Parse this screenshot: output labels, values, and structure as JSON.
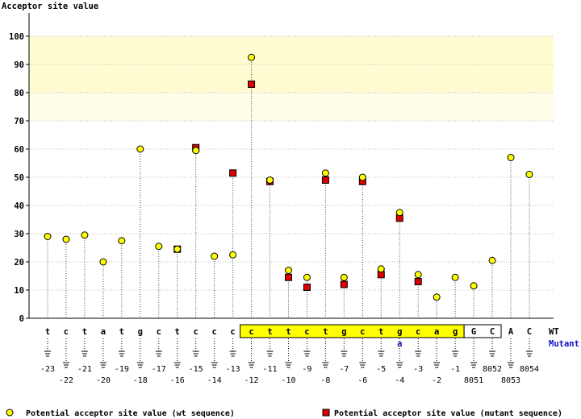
{
  "colors": {
    "wt": "#ffff00",
    "mutant": "#dd0000",
    "band_high": "#fffcd2",
    "band_mid": "#fffee9",
    "highlight": "#ffff00",
    "mutant_label": "#1010cc"
  },
  "chart_data": {
    "type": "scatter",
    "title": "Acceptor site value",
    "ylim": [
      0,
      105
    ],
    "yticks": [
      0,
      10,
      20,
      30,
      40,
      50,
      60,
      70,
      80,
      90,
      100
    ],
    "grid": true,
    "legend_position": "bottom",
    "row_labels": {
      "wt": "WT",
      "mutant": "Mutant"
    },
    "mutant_bases": [
      "",
      "",
      "",
      "",
      "",
      "",
      "",
      "",
      "",
      "",
      "",
      "",
      "",
      "",
      "",
      "",
      "",
      "",
      "",
      "a",
      "",
      "",
      "",
      "",
      "",
      "",
      ""
    ],
    "positions": [
      {
        "label": "-23",
        "base": "t",
        "wt": 29,
        "mut": null
      },
      {
        "label": "-22",
        "base": "c",
        "wt": 28,
        "mut": null
      },
      {
        "label": "-21",
        "base": "t",
        "wt": 29.5,
        "mut": null
      },
      {
        "label": "-20",
        "base": "a",
        "wt": 20,
        "mut": null
      },
      {
        "label": "-19",
        "base": "t",
        "wt": 27.5,
        "mut": null
      },
      {
        "label": "-18",
        "base": "g",
        "wt": 60,
        "mut": null
      },
      {
        "label": "-17",
        "base": "c",
        "wt": 25.5,
        "mut": null
      },
      {
        "label": "-16",
        "base": "t",
        "wt": 24.5,
        "mut": 24.5
      },
      {
        "label": "-15",
        "base": "c",
        "wt": 59.5,
        "mut": 60.5
      },
      {
        "label": "-14",
        "base": "c",
        "wt": 22,
        "mut": null
      },
      {
        "label": "-13",
        "base": "c",
        "wt": 22.5,
        "mut": 51.5
      },
      {
        "label": "-12",
        "base": "c",
        "wt": 92.5,
        "mut": 83
      },
      {
        "label": "-11",
        "base": "t",
        "wt": 49,
        "mut": 48.5
      },
      {
        "label": "-10",
        "base": "t",
        "wt": 17,
        "mut": 14.5
      },
      {
        "label": "-9",
        "base": "c",
        "wt": 14.5,
        "mut": 11
      },
      {
        "label": "-8",
        "base": "t",
        "wt": 51.5,
        "mut": 49
      },
      {
        "label": "-7",
        "base": "g",
        "wt": 14.5,
        "mut": 12
      },
      {
        "label": "-6",
        "base": "c",
        "wt": 50,
        "mut": 48.5
      },
      {
        "label": "-5",
        "base": "t",
        "wt": 17.5,
        "mut": 15.5
      },
      {
        "label": "-4",
        "base": "g",
        "wt": 37.5,
        "mut": 35.5
      },
      {
        "label": "-3",
        "base": "c",
        "wt": 15.5,
        "mut": 13
      },
      {
        "label": "-2",
        "base": "a",
        "wt": 7.5,
        "mut": null
      },
      {
        "label": "-1",
        "base": "g",
        "wt": 14.5,
        "mut": null
      },
      {
        "label": "8051",
        "base": "G",
        "wt": 11.5,
        "mut": null
      },
      {
        "label": "8052",
        "base": "C",
        "wt": 20.5,
        "mut": null
      },
      {
        "label": "8053",
        "base": "A",
        "wt": 57,
        "mut": null
      },
      {
        "label": "8054",
        "base": "C",
        "wt": 51,
        "mut": null
      }
    ],
    "legend": [
      {
        "marker": "circle",
        "label": "Potential acceptor site value (wt sequence)"
      },
      {
        "marker": "square",
        "label": "Potential acceptor site value (mutant sequence)"
      }
    ]
  }
}
